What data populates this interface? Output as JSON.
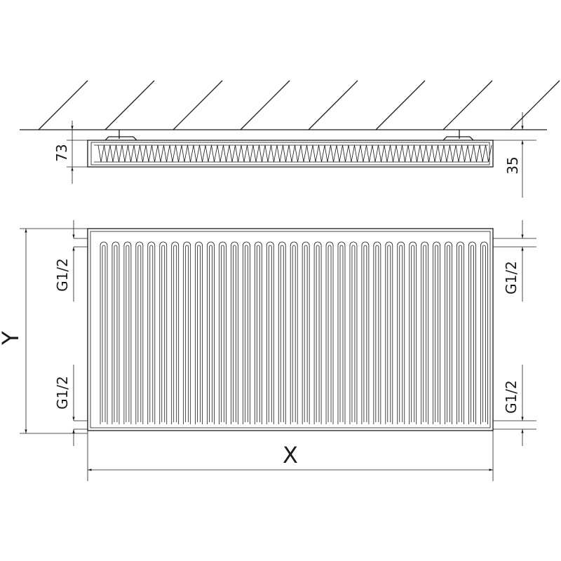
{
  "colors": {
    "line": "#1a1a1a",
    "background": "#ffffff"
  },
  "top_view": {
    "depth_label": "73",
    "wall_gap_label": "35"
  },
  "front_view": {
    "height_label": "Y",
    "width_label": "X",
    "connections": {
      "left_top": "G1/2",
      "left_bottom": "G1/2",
      "right_top": "G1/2",
      "right_bottom": "G1/2"
    }
  }
}
